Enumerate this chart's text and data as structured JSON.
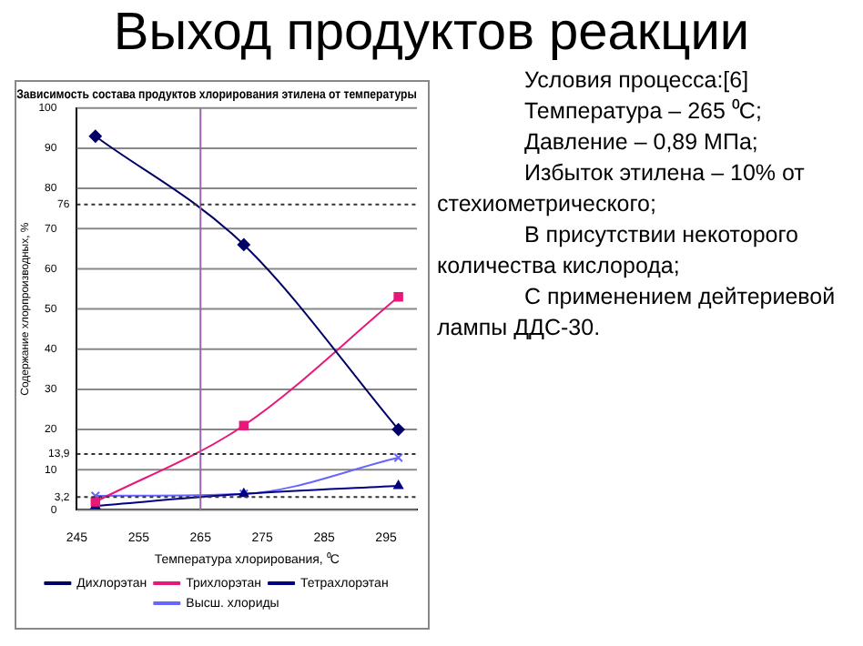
{
  "chart_data": {
    "type": "line",
    "title": "Выход продуктов реакции",
    "subtitle": "Зависимость состава продуктов хлорирования этилена от температуры",
    "xlabel": "Температура хлорирования, ⁰С",
    "ylabel": "Содержание хлорпроизводных, %",
    "x": [
      248,
      272,
      297
    ],
    "xlim": [
      245,
      300
    ],
    "xticks": [
      245,
      255,
      265,
      275,
      285,
      295
    ],
    "ylim": [
      0,
      100
    ],
    "yticks": [
      0,
      10,
      20,
      30,
      40,
      50,
      60,
      70,
      80,
      90,
      100
    ],
    "series": [
      {
        "name": "Дихлорэтан",
        "color": "#000066",
        "marker": "diamond",
        "values": [
          93,
          66,
          20
        ]
      },
      {
        "name": "Трихлорэтан",
        "color": "#e8187a",
        "marker": "square",
        "values": [
          2,
          21,
          53
        ]
      },
      {
        "name": "Тетрахлорэтан",
        "color": "#000080",
        "marker": "triangle",
        "values": [
          1,
          4,
          6
        ]
      },
      {
        "name": "Высш. хлориды",
        "color": "#6666ff",
        "marker": "cross",
        "values": [
          3.5,
          4,
          13
        ]
      }
    ],
    "ref_lines": [
      {
        "axis": "x",
        "value": 265,
        "color": "#9966aa"
      },
      {
        "axis": "y",
        "value": 76,
        "label": "76",
        "line_style": "dotted",
        "color": "#333333"
      },
      {
        "axis": "y",
        "value": 13.9,
        "label": "13,9",
        "line_style": "dotted",
        "color": "#333333"
      },
      {
        "axis": "y",
        "value": 3.2,
        "label": "3,2",
        "line_style": "dotted",
        "color": "#333333"
      }
    ],
    "grid": "y",
    "legend": "bottom",
    "annotations": [
      "Условия процесса:[6]",
      "Температура – 265 ⁰С;",
      "Давление – 0,89 МПа;",
      "Избыток этилена – 10% от стехиометрического;",
      "В присутствии некоторого количества кислорода;",
      "С применением дейтериевой лампы ДДС-30."
    ]
  }
}
